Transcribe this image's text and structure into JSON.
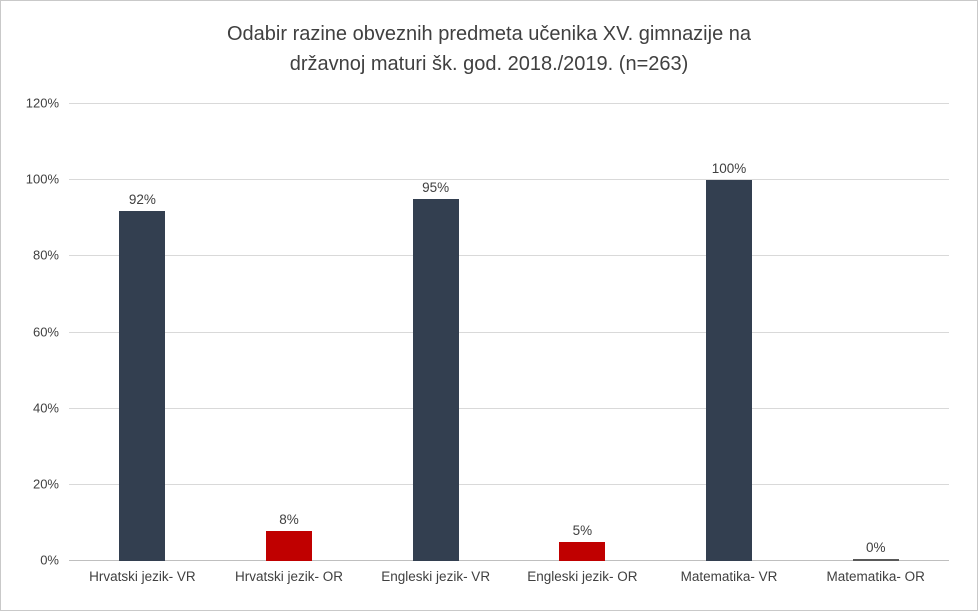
{
  "chart_data": {
    "type": "bar",
    "title_line1": "Odabir razine obveznih predmeta učenika XV. gimnazije na",
    "title_line2": "državnoj maturi šk. god. 2018./2019. (n=263)",
    "categories": [
      "Hrvatski jezik- VR",
      "Hrvatski jezik- OR",
      "Engleski jezik- VR",
      "Engleski jezik- OR",
      "Matematika- VR",
      "Matematika- OR"
    ],
    "values": [
      92,
      8,
      95,
      5,
      100,
      0
    ],
    "data_labels": [
      "92%",
      "8%",
      "95%",
      "5%",
      "100%",
      "0%"
    ],
    "bar_colors": [
      "#333F50",
      "#C00000",
      "#333F50",
      "#C00000",
      "#333F50",
      "#595959"
    ],
    "ylim": [
      0,
      120
    ],
    "y_ticks": [
      "0%",
      "20%",
      "40%",
      "60%",
      "80%",
      "100%",
      "120%"
    ],
    "y_tick_values": [
      0,
      20,
      40,
      60,
      80,
      100,
      120
    ],
    "grid": "horizontal",
    "legend": "none",
    "colors": {
      "primary_bar": "#333F50",
      "secondary_bar": "#C00000",
      "gridline": "#d9d9d9",
      "axis_line": "#bfbfbf",
      "title_text": "#404040",
      "label_text": "#404040"
    }
  }
}
